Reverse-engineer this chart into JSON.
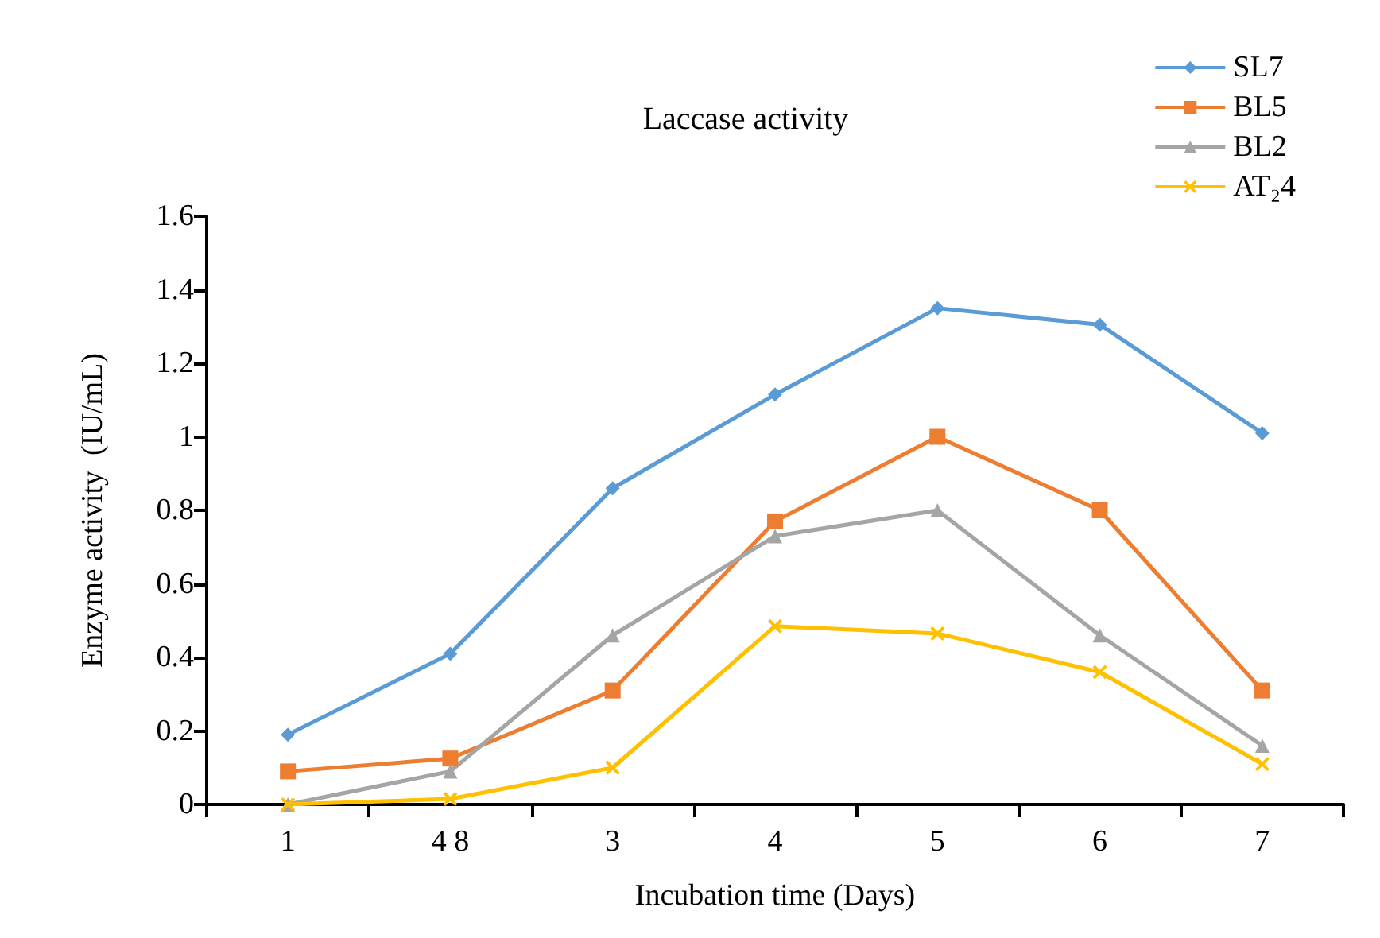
{
  "chart_data": {
    "type": "line",
    "title": "Laccase activity",
    "xlabel": "Incubation time (Days)",
    "ylabel": "Enzyme activity  (IU/mL)",
    "categories": [
      "1",
      "4 8",
      "3",
      "4",
      "5",
      "6",
      "7"
    ],
    "series": [
      {
        "name": "SL7",
        "color": "#5b9bd5",
        "marker": "diamond",
        "values": [
          0.19,
          0.41,
          0.86,
          1.115,
          1.35,
          1.305,
          1.01
        ]
      },
      {
        "name": "BL5",
        "color": "#ed7d31",
        "marker": "square",
        "values": [
          0.09,
          0.125,
          0.31,
          0.77,
          1.0,
          0.8,
          0.31
        ]
      },
      {
        "name": "BL2",
        "color": "#a5a5a5",
        "marker": "triangle",
        "values": [
          0,
          0.09,
          0.46,
          0.73,
          0.8,
          0.46,
          0.16
        ]
      },
      {
        "name": "AT₂4",
        "color": "#ffc000",
        "marker": "cross",
        "values": [
          0,
          0.015,
          0.1,
          0.485,
          0.465,
          0.36,
          0.11
        ]
      }
    ],
    "ylim": [
      0,
      1.6
    ],
    "yticks": [
      0,
      0.2,
      0.4,
      0.6,
      0.8,
      1,
      1.2,
      1.4,
      1.6
    ],
    "grid": false,
    "legend": "top right",
    "line_style": "solid"
  }
}
